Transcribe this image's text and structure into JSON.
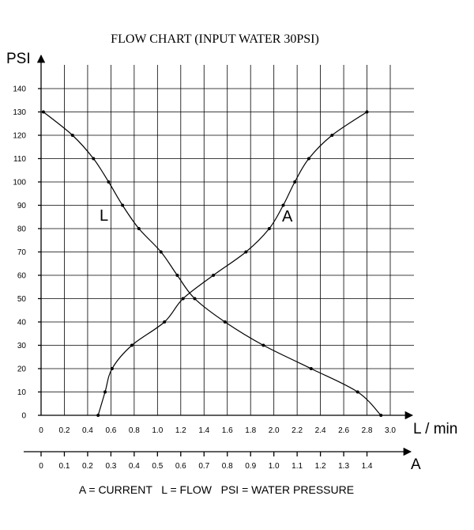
{
  "chart_data": {
    "type": "line",
    "title": "FLOW CHART (INPUT WATER 30PSI)",
    "ylabel": "PSI",
    "xlabel": "L / min",
    "x2label": "A",
    "ylim": [
      0,
      140
    ],
    "xlim": [
      0,
      3.0
    ],
    "x2lim": [
      0,
      1.5
    ],
    "y_ticks": [
      "0",
      "10",
      "20",
      "30",
      "40",
      "50",
      "60",
      "70",
      "80",
      "90",
      "100",
      "110",
      "120",
      "130",
      "140"
    ],
    "x_ticks": [
      "0",
      "0.2",
      "0.4",
      "0.6",
      "0.8",
      "1.0",
      "1.2",
      "1.4",
      "1.6",
      "1.8",
      "2.0",
      "2.2",
      "2.4",
      "2.6",
      "2.8",
      "3.0"
    ],
    "x2_ticks": [
      "0",
      "0.1",
      "0.2",
      "0.3",
      "0.4",
      "0.5",
      "0.6",
      "0.7",
      "0.8",
      "0.9",
      "1.0",
      "1.1",
      "1.2",
      "1.3",
      "1.4"
    ],
    "grid": true,
    "series": [
      {
        "name": "L",
        "axis": "L / min",
        "x": [
          0.02,
          0.27,
          0.45,
          0.58,
          0.7,
          0.84,
          1.03,
          1.17,
          1.32,
          1.58,
          1.91,
          2.32,
          2.72,
          2.92
        ],
        "y": [
          130,
          120,
          110,
          100,
          90,
          80,
          70,
          60,
          50,
          40,
          30,
          20,
          10,
          0
        ]
      },
      {
        "name": "A",
        "axis": "A",
        "x": [
          0.245,
          0.275,
          0.305,
          0.39,
          0.53,
          0.61,
          0.74,
          0.88,
          0.98,
          1.04,
          1.09,
          1.15,
          1.25,
          1.4
        ],
        "y": [
          0,
          10,
          20,
          30,
          40,
          50,
          60,
          70,
          80,
          90,
          100,
          110,
          120,
          130
        ]
      }
    ],
    "footnote": "A = CURRENT   L = FLOW   PSI = WATER PRESSURE"
  }
}
